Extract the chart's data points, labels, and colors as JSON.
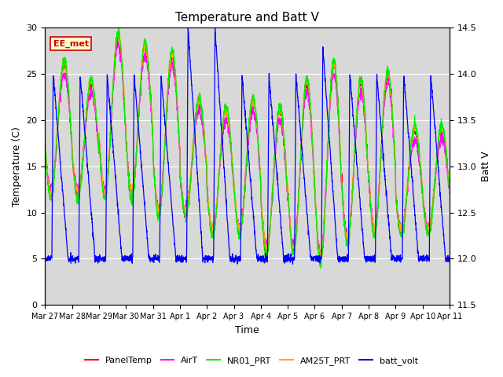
{
  "title": "Temperature and Batt V",
  "xlabel": "Time",
  "ylabel_left": "Temperature (C)",
  "ylabel_right": "Batt V",
  "ylim_left": [
    0,
    30
  ],
  "ylim_right": [
    11.5,
    14.5
  ],
  "annotation": "EE_met",
  "annotation_color": "#cc0000",
  "annotation_bg": "#ffffcc",
  "background_color": "#d8d8d8",
  "series_colors": {
    "PanelTemp": "#ff0000",
    "AirT": "#ff00ff",
    "NR01_PRT": "#00ee00",
    "AM25T_PRT": "#ffaa00",
    "batt_volt": "#0000ff"
  },
  "xtick_labels": [
    "Mar 27",
    "Mar 28",
    "Mar 29",
    "Mar 30",
    "Mar 31",
    "Apr 1",
    "Apr 2",
    "Apr 3",
    "Apr 4",
    "Apr 5",
    "Apr 6",
    "Apr 7",
    "Apr 8",
    "Apr 9",
    "Apr 10",
    "Apr 11"
  ],
  "xtick_positions": [
    0,
    1,
    2,
    3,
    4,
    5,
    6,
    7,
    8,
    9,
    10,
    11,
    12,
    13,
    14,
    15
  ],
  "num_days": 15,
  "pts_per_day": 144
}
